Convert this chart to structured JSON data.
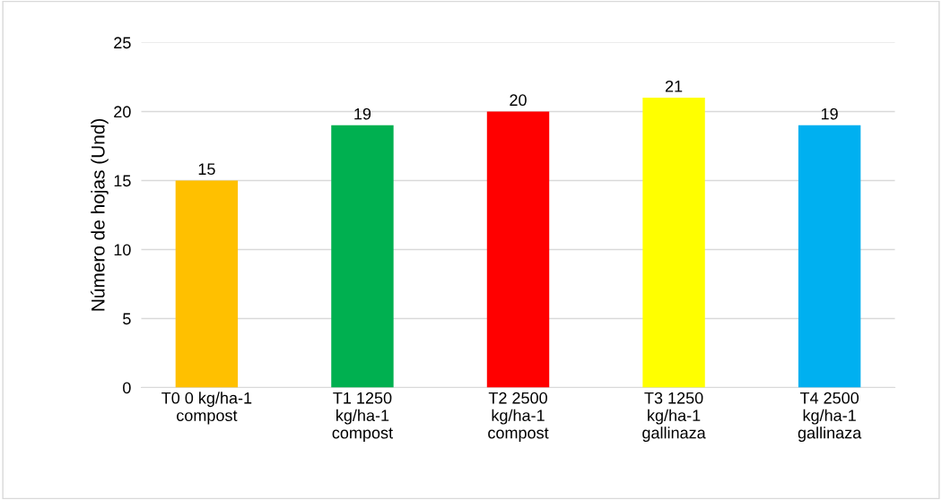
{
  "chart_data": {
    "type": "bar",
    "ylabel": "Número de hojas (Und)",
    "categories": [
      "T0 0 kg/ha-1\ncompost",
      "T1 1250\nkg/ha-1\ncompost",
      "T2 2500\nkg/ha-1\ncompost",
      "T3 1250\nkg/ha-1\ngallinaza",
      "T4 2500\nkg/ha-1\ngallinaza"
    ],
    "values": [
      15,
      19,
      20,
      21,
      19
    ],
    "colors": [
      "#ffc000",
      "#00b050",
      "#ff0000",
      "#ffff00",
      "#00b0f0"
    ],
    "ylim": [
      0,
      25
    ],
    "yticks": [
      0,
      5,
      10,
      15,
      20,
      25
    ],
    "grid": "y",
    "data_labels": true,
    "legend": false
  }
}
